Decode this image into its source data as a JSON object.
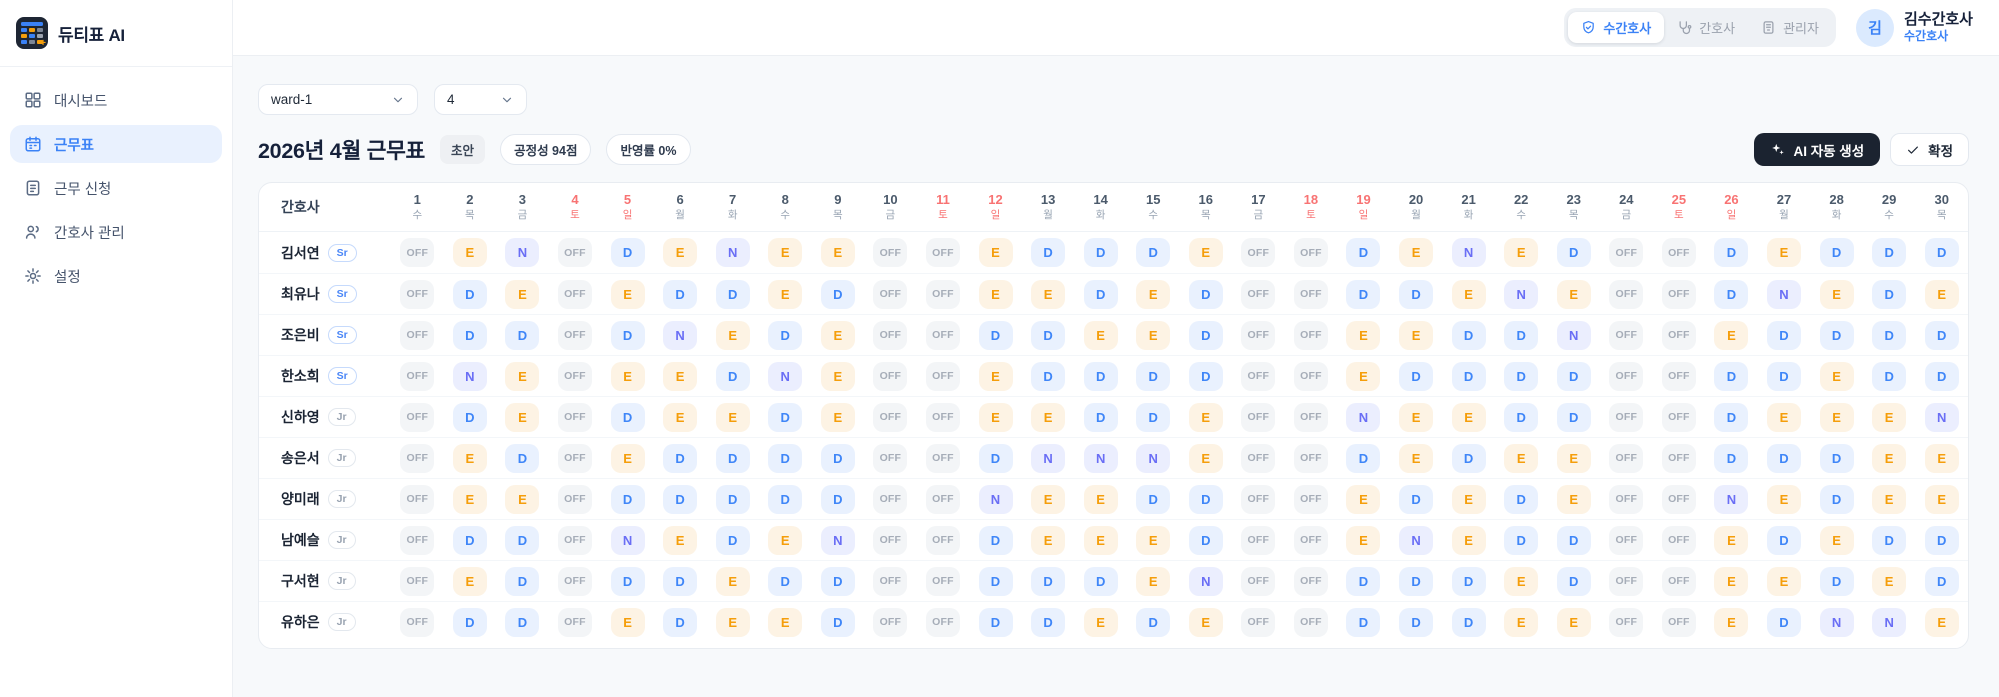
{
  "app": {
    "logo_title": "듀티표 AI"
  },
  "sidebar": {
    "items": [
      {
        "label": "대시보드",
        "active": false
      },
      {
        "label": "근무표",
        "active": true
      },
      {
        "label": "근무 신청",
        "active": false
      },
      {
        "label": "간호사 관리",
        "active": false
      },
      {
        "label": "설정",
        "active": false
      }
    ]
  },
  "header": {
    "roles": [
      {
        "label": "수간호사",
        "active": true
      },
      {
        "label": "간호사",
        "active": false
      },
      {
        "label": "관리자",
        "active": false
      }
    ],
    "user": {
      "initial": "김",
      "name": "김수간호사",
      "role": "수간호사"
    }
  },
  "toolbar": {
    "ward_select": "ward-1",
    "month_select": "4",
    "title": "2026년 4월 근무표",
    "status_badge": "초안",
    "fairness_badge": "공정성 94점",
    "reflect_badge": "반영률 0%",
    "ai_button": "AI 자동 생성",
    "confirm_button": "확정"
  },
  "schedule": {
    "nurse_col_header": "간호사",
    "days": [
      {
        "n": 1,
        "w": "수",
        "we": false
      },
      {
        "n": 2,
        "w": "목",
        "we": false
      },
      {
        "n": 3,
        "w": "금",
        "we": false
      },
      {
        "n": 4,
        "w": "토",
        "we": true
      },
      {
        "n": 5,
        "w": "일",
        "we": true
      },
      {
        "n": 6,
        "w": "월",
        "we": false
      },
      {
        "n": 7,
        "w": "화",
        "we": false
      },
      {
        "n": 8,
        "w": "수",
        "we": false
      },
      {
        "n": 9,
        "w": "목",
        "we": false
      },
      {
        "n": 10,
        "w": "금",
        "we": false
      },
      {
        "n": 11,
        "w": "토",
        "we": true
      },
      {
        "n": 12,
        "w": "일",
        "we": true
      },
      {
        "n": 13,
        "w": "월",
        "we": false
      },
      {
        "n": 14,
        "w": "화",
        "we": false
      },
      {
        "n": 15,
        "w": "수",
        "we": false
      },
      {
        "n": 16,
        "w": "목",
        "we": false
      },
      {
        "n": 17,
        "w": "금",
        "we": false
      },
      {
        "n": 18,
        "w": "토",
        "we": true
      },
      {
        "n": 19,
        "w": "일",
        "we": true
      },
      {
        "n": 20,
        "w": "월",
        "we": false
      },
      {
        "n": 21,
        "w": "화",
        "we": false
      },
      {
        "n": 22,
        "w": "수",
        "we": false
      },
      {
        "n": 23,
        "w": "목",
        "we": false
      },
      {
        "n": 24,
        "w": "금",
        "we": false
      },
      {
        "n": 25,
        "w": "토",
        "we": true
      },
      {
        "n": 26,
        "w": "일",
        "we": true
      },
      {
        "n": 27,
        "w": "월",
        "we": false
      },
      {
        "n": 28,
        "w": "화",
        "we": false
      },
      {
        "n": 29,
        "w": "수",
        "we": false
      },
      {
        "n": 30,
        "w": "목",
        "we": false
      }
    ],
    "nurses": [
      {
        "name": "김서연",
        "grade": "Sr",
        "shifts": [
          "OFF",
          "E",
          "N",
          "OFF",
          "D",
          "E",
          "N",
          "E",
          "E",
          "OFF",
          "OFF",
          "E",
          "D",
          "D",
          "D",
          "E",
          "OFF",
          "OFF",
          "D",
          "E",
          "N",
          "E",
          "D",
          "OFF",
          "OFF",
          "D",
          "E",
          "D",
          "D",
          "D"
        ]
      },
      {
        "name": "최유나",
        "grade": "Sr",
        "shifts": [
          "OFF",
          "D",
          "E",
          "OFF",
          "E",
          "D",
          "D",
          "E",
          "D",
          "OFF",
          "OFF",
          "E",
          "E",
          "D",
          "E",
          "D",
          "OFF",
          "OFF",
          "D",
          "D",
          "E",
          "N",
          "E",
          "OFF",
          "OFF",
          "D",
          "N",
          "E",
          "D",
          "E"
        ]
      },
      {
        "name": "조은비",
        "grade": "Sr",
        "shifts": [
          "OFF",
          "D",
          "D",
          "OFF",
          "D",
          "N",
          "E",
          "D",
          "E",
          "OFF",
          "OFF",
          "D",
          "D",
          "E",
          "E",
          "D",
          "OFF",
          "OFF",
          "E",
          "E",
          "D",
          "D",
          "N",
          "OFF",
          "OFF",
          "E",
          "D",
          "D",
          "D",
          "D"
        ]
      },
      {
        "name": "한소희",
        "grade": "Sr",
        "shifts": [
          "OFF",
          "N",
          "E",
          "OFF",
          "E",
          "E",
          "D",
          "N",
          "E",
          "OFF",
          "OFF",
          "E",
          "D",
          "D",
          "D",
          "D",
          "OFF",
          "OFF",
          "E",
          "D",
          "D",
          "D",
          "D",
          "OFF",
          "OFF",
          "D",
          "D",
          "E",
          "D",
          "D"
        ]
      },
      {
        "name": "신하영",
        "grade": "Jr",
        "shifts": [
          "OFF",
          "D",
          "E",
          "OFF",
          "D",
          "E",
          "E",
          "D",
          "E",
          "OFF",
          "OFF",
          "E",
          "E",
          "D",
          "D",
          "E",
          "OFF",
          "OFF",
          "N",
          "E",
          "E",
          "D",
          "D",
          "OFF",
          "OFF",
          "D",
          "E",
          "E",
          "E",
          "N"
        ]
      },
      {
        "name": "송은서",
        "grade": "Jr",
        "shifts": [
          "OFF",
          "E",
          "D",
          "OFF",
          "E",
          "D",
          "D",
          "D",
          "D",
          "OFF",
          "OFF",
          "D",
          "N",
          "N",
          "N",
          "E",
          "OFF",
          "OFF",
          "D",
          "E",
          "D",
          "E",
          "E",
          "OFF",
          "OFF",
          "D",
          "D",
          "D",
          "E",
          "E"
        ]
      },
      {
        "name": "양미래",
        "grade": "Jr",
        "shifts": [
          "OFF",
          "E",
          "E",
          "OFF",
          "D",
          "D",
          "D",
          "D",
          "D",
          "OFF",
          "OFF",
          "N",
          "E",
          "E",
          "D",
          "D",
          "OFF",
          "OFF",
          "E",
          "D",
          "E",
          "D",
          "E",
          "OFF",
          "OFF",
          "N",
          "E",
          "D",
          "E",
          "E"
        ]
      },
      {
        "name": "남예슬",
        "grade": "Jr",
        "shifts": [
          "OFF",
          "D",
          "D",
          "OFF",
          "N",
          "E",
          "D",
          "E",
          "N",
          "OFF",
          "OFF",
          "D",
          "E",
          "E",
          "E",
          "D",
          "OFF",
          "OFF",
          "E",
          "N",
          "E",
          "D",
          "D",
          "OFF",
          "OFF",
          "E",
          "D",
          "E",
          "D",
          "D"
        ]
      },
      {
        "name": "구서현",
        "grade": "Jr",
        "shifts": [
          "OFF",
          "E",
          "D",
          "OFF",
          "D",
          "D",
          "E",
          "D",
          "D",
          "OFF",
          "OFF",
          "D",
          "D",
          "D",
          "E",
          "N",
          "OFF",
          "OFF",
          "D",
          "D",
          "D",
          "E",
          "D",
          "OFF",
          "OFF",
          "E",
          "E",
          "D",
          "E",
          "D"
        ]
      },
      {
        "name": "유하은",
        "grade": "Jr",
        "shifts": [
          "OFF",
          "D",
          "D",
          "OFF",
          "E",
          "D",
          "E",
          "E",
          "D",
          "OFF",
          "OFF",
          "D",
          "D",
          "E",
          "D",
          "E",
          "OFF",
          "OFF",
          "D",
          "D",
          "D",
          "E",
          "E",
          "OFF",
          "OFF",
          "E",
          "D",
          "N",
          "N",
          "E"
        ]
      }
    ]
  },
  "colors": {
    "accent": "#3b82f6",
    "weekend": "#f87373",
    "shift_d_text": "#3f86f8",
    "shift_d_bg": "#e9f1fe",
    "shift_e_text": "#f59e0b",
    "shift_e_bg": "#fdf3e4",
    "shift_n_text": "#6a6ef5",
    "shift_n_bg": "#ebeefe",
    "shift_off_text": "#a6adb8",
    "shift_off_bg": "#f3f5f7",
    "ai_button_bg": "#1b2330"
  }
}
